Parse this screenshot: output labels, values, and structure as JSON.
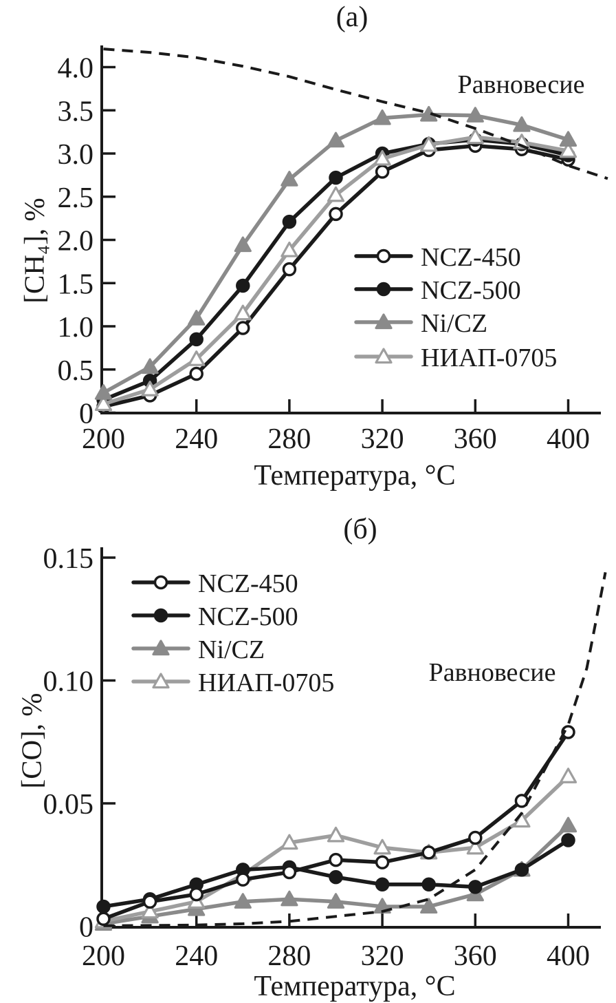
{
  "chart_data": [
    {
      "panel": "a",
      "title": "(а)",
      "type": "line",
      "xlabel": "Температура, °C",
      "ylabel": "[CH₄], %",
      "x": [
        200,
        220,
        240,
        260,
        280,
        300,
        320,
        340,
        360,
        380,
        400
      ],
      "xticks": {
        "values": [
          200,
          240,
          280,
          320,
          360,
          400
        ],
        "labels": [
          "200",
          "240",
          "280",
          "320",
          "360",
          "400"
        ]
      },
      "yticks": {
        "values": [
          0,
          0.5,
          1.0,
          1.5,
          2.0,
          2.5,
          3.0,
          3.5,
          4.0
        ],
        "labels": [
          "0",
          "0.5",
          "1.0",
          "1.5",
          "2.0",
          "2.5",
          "3.0",
          "3.5",
          "4.0"
        ]
      },
      "xlim": [
        200,
        417
      ],
      "ylim": [
        0,
        4.25
      ],
      "grid": false,
      "legend_position": "inside right",
      "series": [
        {
          "name": "NCZ-450",
          "slug": "ncz-450",
          "marker": "open-circle",
          "color": "#1a1a1a",
          "values": [
            0.07,
            0.2,
            0.45,
            0.98,
            1.66,
            2.3,
            2.79,
            3.04,
            3.09,
            3.05,
            2.93
          ]
        },
        {
          "name": "NCZ-500",
          "slug": "ncz-500",
          "marker": "filled-circle",
          "color": "#1a1a1a",
          "values": [
            0.15,
            0.37,
            0.85,
            1.47,
            2.21,
            2.72,
            3.0,
            3.11,
            3.16,
            3.11,
            2.98
          ]
        },
        {
          "name": "Ni/CZ",
          "slug": "ni-cz",
          "marker": "filled-triangle",
          "color": "#8a8a8a",
          "values": [
            0.23,
            0.53,
            1.09,
            1.94,
            2.7,
            3.15,
            3.41,
            3.45,
            3.44,
            3.33,
            3.16
          ]
        },
        {
          "name": "НИАП-0705",
          "slug": "niap-0705",
          "marker": "open-triangle",
          "color": "#9e9e9e",
          "values": [
            0.1,
            0.27,
            0.62,
            1.15,
            1.88,
            2.52,
            2.94,
            3.1,
            3.19,
            3.13,
            3.03
          ]
        }
      ],
      "equilibrium_curve": {
        "label": "Равновесие",
        "line_style": "dashed",
        "color": "#1a1a1a",
        "points": [
          [
            200,
            4.21
          ],
          [
            220,
            4.17
          ],
          [
            240,
            4.11
          ],
          [
            260,
            4.01
          ],
          [
            280,
            3.89
          ],
          [
            300,
            3.74
          ],
          [
            320,
            3.6
          ],
          [
            340,
            3.47
          ],
          [
            360,
            3.29
          ],
          [
            380,
            3.09
          ],
          [
            400,
            2.86
          ],
          [
            417,
            2.71
          ]
        ]
      },
      "annotation": "Равновесие"
    },
    {
      "panel": "б",
      "title": "(б)",
      "type": "line",
      "xlabel": "Температура, °C",
      "ylabel": "[CO], %",
      "x": [
        200,
        220,
        240,
        260,
        280,
        300,
        320,
        340,
        360,
        380,
        400
      ],
      "xticks": {
        "values": [
          200,
          240,
          280,
          320,
          360,
          400
        ],
        "labels": [
          "200",
          "240",
          "280",
          "320",
          "360",
          "400"
        ]
      },
      "yticks": {
        "values": [
          0,
          0.05,
          0.1,
          0.15
        ],
        "labels": [
          "0",
          "0.05",
          "0.10",
          "0.15"
        ]
      },
      "xlim": [
        200,
        417
      ],
      "ylim": [
        0,
        0.155
      ],
      "grid": false,
      "legend_position": "inside top-left",
      "series": [
        {
          "name": "NCZ-450",
          "slug": "ncz-450",
          "marker": "open-circle",
          "color": "#1a1a1a",
          "values": [
            0.003,
            0.01,
            0.013,
            0.019,
            0.022,
            0.027,
            0.026,
            0.03,
            0.036,
            0.051,
            0.079
          ]
        },
        {
          "name": "NCZ-500",
          "slug": "ncz-500",
          "marker": "filled-circle",
          "color": "#1a1a1a",
          "values": [
            0.008,
            0.011,
            0.017,
            0.023,
            0.024,
            0.02,
            0.017,
            0.017,
            0.016,
            0.023,
            0.035
          ]
        },
        {
          "name": "Ni/CZ",
          "slug": "ni-cz",
          "marker": "filled-triangle",
          "color": "#8a8a8a",
          "values": [
            0.001,
            0.004,
            0.007,
            0.01,
            0.011,
            0.01,
            0.008,
            0.008,
            0.013,
            0.023,
            0.041
          ]
        },
        {
          "name": "НИАП-0705",
          "slug": "niap-0705",
          "marker": "open-triangle",
          "color": "#9e9e9e",
          "values": [
            0.002,
            0.006,
            0.01,
            0.021,
            0.034,
            0.037,
            0.032,
            0.03,
            0.032,
            0.043,
            0.061
          ]
        }
      ],
      "equilibrium_curve": {
        "label": "Равновесие",
        "line_style": "dashed",
        "color": "#1a1a1a",
        "points": [
          [
            200,
            0.0002
          ],
          [
            220,
            0.0003
          ],
          [
            240,
            0.0005
          ],
          [
            260,
            0.001
          ],
          [
            280,
            0.002
          ],
          [
            300,
            0.004
          ],
          [
            320,
            0.006
          ],
          [
            340,
            0.011
          ],
          [
            360,
            0.023
          ],
          [
            380,
            0.046
          ],
          [
            400,
            0.082
          ],
          [
            408,
            0.105
          ],
          [
            416,
            0.144
          ]
        ]
      },
      "annotation": "Равновесие"
    }
  ]
}
